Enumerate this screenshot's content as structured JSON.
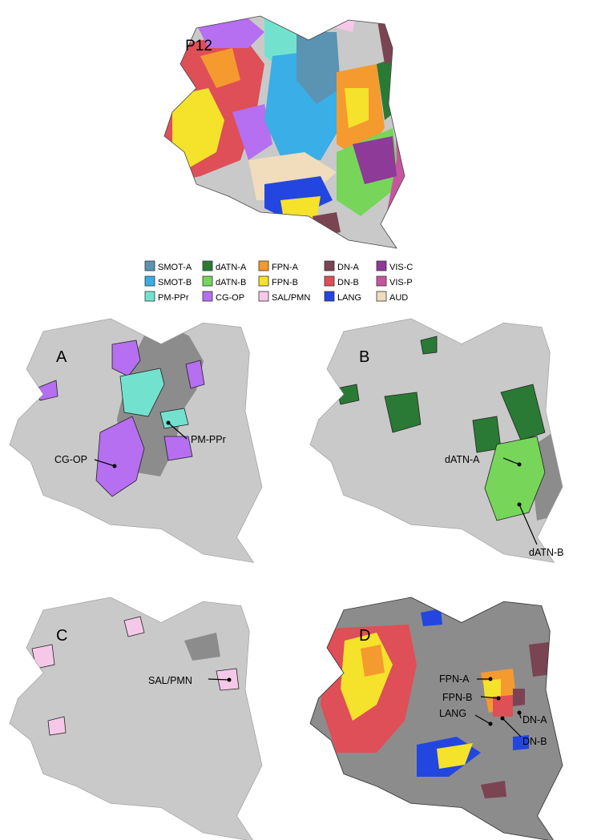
{
  "figure": {
    "participant": "P12",
    "colors": {
      "SMOT-A": "#5b93b3",
      "SMOT-B": "#3aaee6",
      "PM-PPr": "#72e2cf",
      "dATN-A": "#2a7a35",
      "dATN-B": "#77d55a",
      "CG-OP": "#b56ff0",
      "FPN-A": "#f59a2e",
      "FPN-B": "#f5e22a",
      "SAL/PMN": "#f6c8e8",
      "DN-A": "#7a4452",
      "DN-B": "#de4f57",
      "LANG": "#2346e0",
      "VIS-C": "#8d3a99",
      "VIS-P": "#c7559e",
      "AUD": "#f1dcbb",
      "background_gray": "#c9c9c9",
      "dark_gray": "#8c8c8c"
    },
    "legend": [
      {
        "label": "SMOT-A",
        "color": "#5b93b3"
      },
      {
        "label": "dATN-A",
        "color": "#2a7a35"
      },
      {
        "label": "FPN-A",
        "color": "#f59a2e"
      },
      {
        "label": "DN-A",
        "color": "#7a4452"
      },
      {
        "label": "VIS-C",
        "color": "#8d3a99"
      },
      {
        "label": "SMOT-B",
        "color": "#3aaee6"
      },
      {
        "label": "dATN-B",
        "color": "#77d55a"
      },
      {
        "label": "FPN-B",
        "color": "#f5e22a"
      },
      {
        "label": "DN-B",
        "color": "#de4f57"
      },
      {
        "label": "VIS-P",
        "color": "#c7559e"
      },
      {
        "label": "PM-PPr",
        "color": "#72e2cf"
      },
      {
        "label": "CG-OP",
        "color": "#b56ff0"
      },
      {
        "label": "SAL/PMN",
        "color": "#f6c8e8"
      },
      {
        "label": "LANG",
        "color": "#2346e0"
      },
      {
        "label": "AUD",
        "color": "#f1dcbb"
      }
    ],
    "panels": {
      "A": {
        "label": "A",
        "callouts": [
          "PM-PPr",
          "CG-OP"
        ]
      },
      "B": {
        "label": "B",
        "callouts": [
          "dATN-A",
          "dATN-B"
        ]
      },
      "C": {
        "label": "C",
        "callouts": [
          "SAL/PMN"
        ]
      },
      "D": {
        "label": "D",
        "callouts": [
          "FPN-A",
          "FPN-B",
          "LANG",
          "DN-A",
          "DN-B"
        ]
      }
    }
  }
}
